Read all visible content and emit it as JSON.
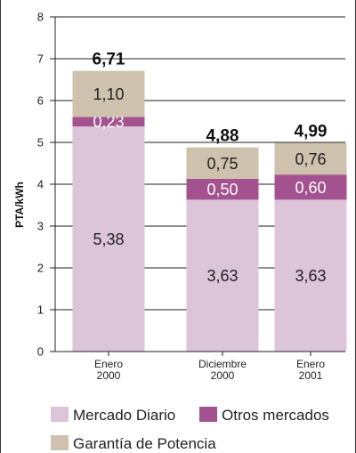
{
  "chart_data": {
    "type": "bar",
    "stacked": true,
    "categories": [
      [
        "Enero",
        "2000"
      ],
      [
        "Diciembre",
        "2000"
      ],
      [
        "Enero",
        "2001"
      ]
    ],
    "series": [
      {
        "name": "Mercado Diario",
        "values": [
          5.38,
          3.63,
          3.63
        ],
        "labels": [
          "5,38",
          "3,63",
          "3,63"
        ],
        "color": "#dcc4d9"
      },
      {
        "name": "Otros mercados",
        "values": [
          0.23,
          0.5,
          0.6
        ],
        "labels": [
          "0,23",
          "0,50",
          "0,60"
        ],
        "color": "#a3528f"
      },
      {
        "name": "Garantía de Potencia",
        "values": [
          1.1,
          0.75,
          0.76
        ],
        "labels": [
          "1,10",
          "0,75",
          "0,76"
        ],
        "color": "#cec1ae"
      }
    ],
    "totals": [
      "6,71",
      "4,88",
      "4,99"
    ],
    "ylabel": "PTA/kWh",
    "ylim": [
      0,
      8
    ],
    "yticks": [
      0,
      1,
      2,
      3,
      4,
      5,
      6,
      7,
      8
    ],
    "grid": true,
    "legend_position": "bottom"
  }
}
